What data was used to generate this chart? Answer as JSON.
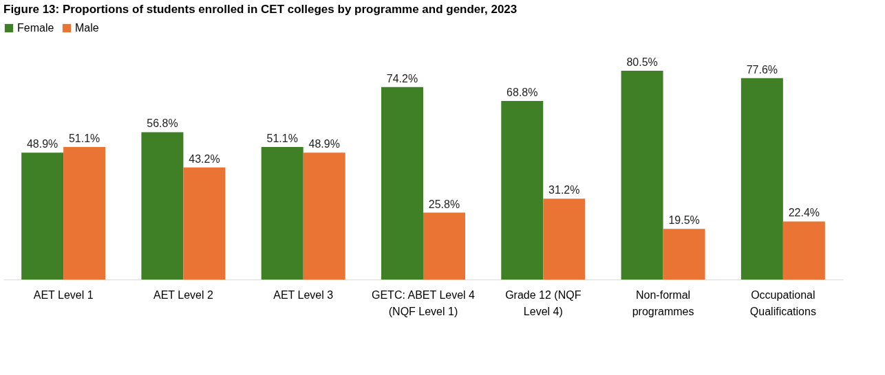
{
  "chart_data": {
    "type": "bar",
    "title": "Figure 13: Proportions of students enrolled in CET colleges by programme and gender, 2023",
    "categories": [
      "AET Level 1",
      "AET Level 2",
      "AET Level 3",
      "GETC: ABET Level 4 (NQF Level 1)",
      "Grade 12 (NQF Level 4)",
      "Non-formal programmes",
      "Occupational Qualifications"
    ],
    "series": [
      {
        "name": "Female",
        "color": "#3f7f25",
        "values": [
          48.9,
          56.8,
          51.1,
          74.2,
          68.8,
          80.5,
          77.6
        ],
        "value_labels": [
          "48.9%",
          "56.8%",
          "51.1%",
          "74.2%",
          "68.8%",
          "80.5%",
          "77.6%"
        ]
      },
      {
        "name": "Male",
        "color": "#ea7434",
        "values": [
          51.1,
          43.2,
          48.9,
          25.8,
          31.2,
          19.5,
          22.4
        ],
        "value_labels": [
          "51.1%",
          "43.2%",
          "48.9%",
          "25.8%",
          "31.2%",
          "19.5%",
          "22.4%"
        ]
      }
    ],
    "legend": "top",
    "grid": false
  }
}
